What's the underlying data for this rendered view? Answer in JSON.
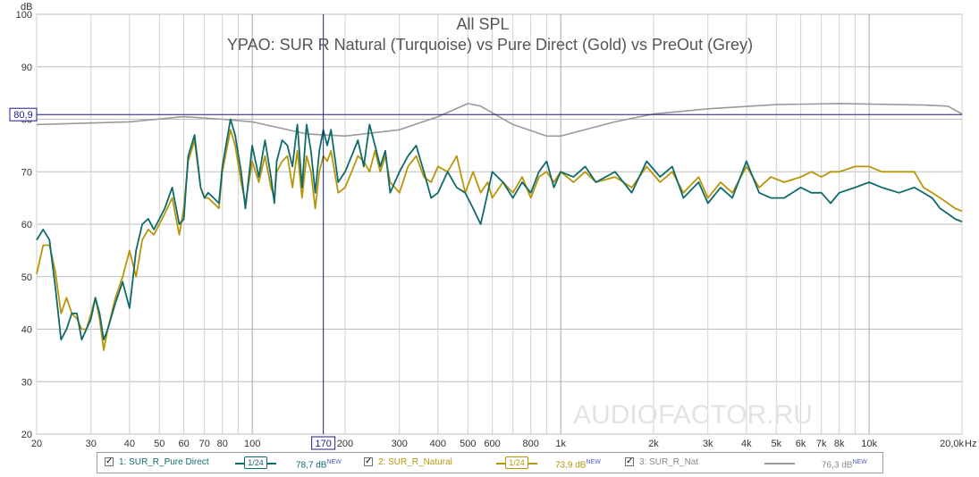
{
  "chart_data": {
    "type": "line",
    "title": "All SPL",
    "subtitle": "YPAO: SUR R Natural (Turquoise) vs Pure Direct (Gold) vs PreOut (Grey)",
    "ylabel": "dB",
    "xunit": "Hz",
    "xscale": "log",
    "xlim": [
      20,
      20000
    ],
    "ylim": [
      20,
      100
    ],
    "grid": true,
    "yticks": [
      "100",
      "90",
      "80",
      "70",
      "60",
      "50",
      "40",
      "30",
      "20"
    ],
    "xticks": [
      {
        "v": 20,
        "label": "20"
      },
      {
        "v": 30,
        "label": "30"
      },
      {
        "v": 40,
        "label": "40"
      },
      {
        "v": 50,
        "label": "50"
      },
      {
        "v": 60,
        "label": "60"
      },
      {
        "v": 70,
        "label": "70"
      },
      {
        "v": 80,
        "label": "80"
      },
      {
        "v": 100,
        "label": "100"
      },
      {
        "v": 200,
        "label": "200"
      },
      {
        "v": 300,
        "label": "300"
      },
      {
        "v": 400,
        "label": "400"
      },
      {
        "v": 500,
        "label": "500"
      },
      {
        "v": 600,
        "label": "600"
      },
      {
        "v": 800,
        "label": "800"
      },
      {
        "v": 1000,
        "label": "1k"
      },
      {
        "v": 2000,
        "label": "2k"
      },
      {
        "v": 3000,
        "label": "3k"
      },
      {
        "v": 4000,
        "label": "4k"
      },
      {
        "v": 5000,
        "label": "5k"
      },
      {
        "v": 6000,
        "label": "6k"
      },
      {
        "v": 7000,
        "label": "7k"
      },
      {
        "v": 8000,
        "label": "8k"
      },
      {
        "v": 10000,
        "label": "10k"
      },
      {
        "v": 20000,
        "label": "20,0k"
      }
    ],
    "cursor": {
      "x": 170,
      "x_label": "170",
      "y": 80.9,
      "y_label": "80,9"
    },
    "watermark": "AUDIOFACTOR.RU",
    "series": [
      {
        "name": "SUR_R_Nat",
        "color": "#9a9a9a",
        "points": [
          [
            20,
            79
          ],
          [
            40,
            79.5
          ],
          [
            60,
            80.5
          ],
          [
            80,
            80
          ],
          [
            100,
            79.5
          ],
          [
            150,
            77.2
          ],
          [
            200,
            76.8
          ],
          [
            300,
            78
          ],
          [
            400,
            80.5
          ],
          [
            500,
            83
          ],
          [
            550,
            82.5
          ],
          [
            700,
            79
          ],
          [
            900,
            76.8
          ],
          [
            1000,
            76.8
          ],
          [
            1500,
            79.5
          ],
          [
            2000,
            81
          ],
          [
            3000,
            82
          ],
          [
            5000,
            82.8
          ],
          [
            8000,
            83
          ],
          [
            15000,
            82.7
          ],
          [
            18000,
            82.5
          ],
          [
            20000,
            81
          ]
        ]
      },
      {
        "name": "SUR_R_Natural",
        "color": "#b8960a",
        "points": [
          [
            20,
            50.5
          ],
          [
            21,
            56
          ],
          [
            22,
            56
          ],
          [
            23,
            51
          ],
          [
            24,
            43
          ],
          [
            25,
            46
          ],
          [
            26,
            43
          ],
          [
            27,
            42
          ],
          [
            28,
            40
          ],
          [
            29,
            40
          ],
          [
            30,
            43
          ],
          [
            31,
            46
          ],
          [
            32,
            42
          ],
          [
            33,
            36
          ],
          [
            34,
            40
          ],
          [
            36,
            46
          ],
          [
            38,
            50
          ],
          [
            40,
            55
          ],
          [
            42,
            50
          ],
          [
            44,
            57
          ],
          [
            46,
            59
          ],
          [
            48,
            58
          ],
          [
            52,
            62
          ],
          [
            55,
            65
          ],
          [
            58,
            58
          ],
          [
            60,
            63
          ],
          [
            62,
            72
          ],
          [
            65,
            76
          ],
          [
            68,
            67
          ],
          [
            70,
            65
          ],
          [
            72,
            65
          ],
          [
            75,
            64
          ],
          [
            78,
            63
          ],
          [
            80,
            70
          ],
          [
            85,
            78
          ],
          [
            88,
            75
          ],
          [
            92,
            68
          ],
          [
            95,
            64
          ],
          [
            100,
            72
          ],
          [
            105,
            68
          ],
          [
            110,
            73
          ],
          [
            115,
            67
          ],
          [
            118,
            65
          ],
          [
            120,
            70
          ],
          [
            125,
            72
          ],
          [
            130,
            73
          ],
          [
            135,
            67
          ],
          [
            140,
            74
          ],
          [
            145,
            65
          ],
          [
            150,
            73
          ],
          [
            155,
            70
          ],
          [
            160,
            63
          ],
          [
            165,
            70
          ],
          [
            170,
            73
          ],
          [
            175,
            72
          ],
          [
            180,
            74
          ],
          [
            190,
            66
          ],
          [
            200,
            67
          ],
          [
            210,
            70
          ],
          [
            220,
            73
          ],
          [
            230,
            72
          ],
          [
            240,
            70
          ],
          [
            250,
            74
          ],
          [
            260,
            70
          ],
          [
            270,
            73
          ],
          [
            280,
            68
          ],
          [
            300,
            66
          ],
          [
            320,
            71
          ],
          [
            340,
            73
          ],
          [
            360,
            69
          ],
          [
            380,
            68
          ],
          [
            400,
            71
          ],
          [
            430,
            70
          ],
          [
            460,
            73
          ],
          [
            490,
            66
          ],
          [
            520,
            70
          ],
          [
            550,
            66
          ],
          [
            580,
            68
          ],
          [
            600,
            65
          ],
          [
            650,
            68
          ],
          [
            700,
            66
          ],
          [
            750,
            69
          ],
          [
            800,
            65
          ],
          [
            850,
            69
          ],
          [
            900,
            70
          ],
          [
            950,
            68
          ],
          [
            1000,
            70
          ],
          [
            1100,
            68
          ],
          [
            1200,
            70
          ],
          [
            1300,
            68
          ],
          [
            1500,
            69
          ],
          [
            1700,
            67
          ],
          [
            1900,
            71
          ],
          [
            2100,
            68
          ],
          [
            2300,
            70
          ],
          [
            2500,
            66
          ],
          [
            2800,
            69
          ],
          [
            3000,
            65
          ],
          [
            3300,
            68
          ],
          [
            3600,
            66
          ],
          [
            4000,
            71
          ],
          [
            4400,
            67
          ],
          [
            4800,
            69
          ],
          [
            5300,
            68
          ],
          [
            6000,
            69
          ],
          [
            6500,
            70
          ],
          [
            7000,
            69
          ],
          [
            7500,
            70
          ],
          [
            8000,
            70
          ],
          [
            9000,
            71
          ],
          [
            10000,
            71
          ],
          [
            11000,
            70
          ],
          [
            12500,
            70
          ],
          [
            14000,
            70
          ],
          [
            15000,
            67
          ],
          [
            16000,
            66
          ],
          [
            17000,
            65
          ],
          [
            18000,
            64
          ],
          [
            19000,
            63
          ],
          [
            20000,
            62.5
          ]
        ]
      },
      {
        "name": "SUR_R_Pure Direct",
        "color": "#0f6b6b",
        "points": [
          [
            20,
            57
          ],
          [
            21,
            59
          ],
          [
            22,
            57
          ],
          [
            23,
            48
          ],
          [
            24,
            38
          ],
          [
            25,
            40
          ],
          [
            26,
            43
          ],
          [
            27,
            43
          ],
          [
            28,
            38
          ],
          [
            29,
            40
          ],
          [
            30,
            42
          ],
          [
            31,
            46
          ],
          [
            32,
            43
          ],
          [
            33,
            38
          ],
          [
            34,
            40
          ],
          [
            36,
            45
          ],
          [
            38,
            49
          ],
          [
            40,
            44
          ],
          [
            42,
            55
          ],
          [
            44,
            60
          ],
          [
            46,
            61
          ],
          [
            48,
            59
          ],
          [
            52,
            63
          ],
          [
            55,
            67
          ],
          [
            58,
            60
          ],
          [
            60,
            61
          ],
          [
            62,
            73
          ],
          [
            65,
            77
          ],
          [
            68,
            67
          ],
          [
            70,
            65
          ],
          [
            72,
            66
          ],
          [
            75,
            65
          ],
          [
            78,
            64
          ],
          [
            80,
            71
          ],
          [
            85,
            80
          ],
          [
            88,
            77
          ],
          [
            92,
            70
          ],
          [
            95,
            63
          ],
          [
            100,
            75
          ],
          [
            105,
            69
          ],
          [
            110,
            76
          ],
          [
            115,
            69
          ],
          [
            118,
            64
          ],
          [
            120,
            72
          ],
          [
            125,
            76
          ],
          [
            130,
            75
          ],
          [
            135,
            71
          ],
          [
            140,
            79
          ],
          [
            145,
            67
          ],
          [
            150,
            79
          ],
          [
            155,
            74
          ],
          [
            160,
            66
          ],
          [
            165,
            74
          ],
          [
            170,
            78
          ],
          [
            175,
            75
          ],
          [
            180,
            78
          ],
          [
            190,
            68
          ],
          [
            200,
            70
          ],
          [
            210,
            73
          ],
          [
            220,
            76
          ],
          [
            230,
            71
          ],
          [
            240,
            79
          ],
          [
            250,
            75
          ],
          [
            260,
            71
          ],
          [
            270,
            74
          ],
          [
            280,
            66
          ],
          [
            300,
            70
          ],
          [
            320,
            73
          ],
          [
            340,
            75
          ],
          [
            360,
            70
          ],
          [
            380,
            65
          ],
          [
            400,
            66
          ],
          [
            430,
            70
          ],
          [
            460,
            67
          ],
          [
            490,
            66
          ],
          [
            520,
            63
          ],
          [
            550,
            60
          ],
          [
            580,
            66
          ],
          [
            600,
            70
          ],
          [
            650,
            68
          ],
          [
            700,
            65
          ],
          [
            750,
            68
          ],
          [
            800,
            66
          ],
          [
            850,
            70
          ],
          [
            900,
            72
          ],
          [
            950,
            67
          ],
          [
            1000,
            70
          ],
          [
            1100,
            69
          ],
          [
            1200,
            71
          ],
          [
            1300,
            68
          ],
          [
            1500,
            70
          ],
          [
            1700,
            66
          ],
          [
            1900,
            72
          ],
          [
            2100,
            69
          ],
          [
            2300,
            71
          ],
          [
            2500,
            65
          ],
          [
            2800,
            68
          ],
          [
            3000,
            64
          ],
          [
            3300,
            67
          ],
          [
            3600,
            65
          ],
          [
            4000,
            72
          ],
          [
            4400,
            66
          ],
          [
            4800,
            65
          ],
          [
            5300,
            65
          ],
          [
            6000,
            67
          ],
          [
            6500,
            66
          ],
          [
            7000,
            66
          ],
          [
            7500,
            64
          ],
          [
            8000,
            66
          ],
          [
            9000,
            67
          ],
          [
            10000,
            68
          ],
          [
            11000,
            67
          ],
          [
            12500,
            66
          ],
          [
            14000,
            67
          ],
          [
            15000,
            66
          ],
          [
            16000,
            65
          ],
          [
            17000,
            63
          ],
          [
            18000,
            62
          ],
          [
            19000,
            61
          ],
          [
            20000,
            60.5
          ]
        ]
      }
    ]
  },
  "legend": {
    "items": [
      {
        "label": "1: SUR_R_Pure Direct",
        "smoothing": "1/24",
        "level": "78,7 dB",
        "tag": "NEW"
      },
      {
        "label": "2: SUR_R_Natural",
        "smoothing": "1/24",
        "level": "73,9 dB",
        "tag": "NEW"
      },
      {
        "label": "3: SUR_R_Nat",
        "level": "76,3 dB",
        "tag": "NEW"
      }
    ]
  },
  "colors": {
    "teal": "#0f6b6b",
    "gold": "#b8960a",
    "grey": "#9a9a9a",
    "cursor": "#1c1c80"
  }
}
